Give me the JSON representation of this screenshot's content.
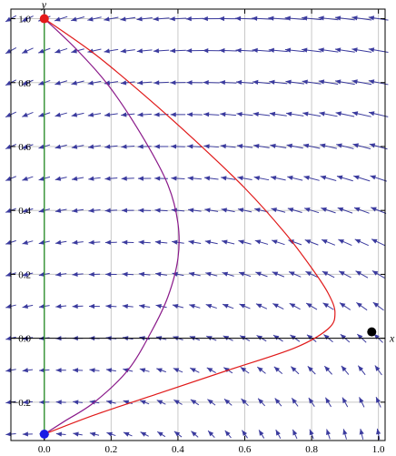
{
  "chart_data": {
    "type": "line",
    "title": "",
    "xlabel": "x",
    "ylabel": "y",
    "xlim": [
      -0.1,
      1.02
    ],
    "ylim": [
      -0.32,
      1.03
    ],
    "xticks": [
      0.0,
      0.2,
      0.4,
      0.6,
      0.8,
      1.0
    ],
    "xtick_labels": [
      "0.0",
      "0.2",
      "0.4",
      "0.6",
      "0.8",
      "1.0"
    ],
    "yticks": [
      -0.2,
      0.0,
      0.2,
      0.4,
      0.6,
      0.8,
      1.0
    ],
    "ytick_labels": [
      "−0.2",
      "0.0",
      "0.2",
      "0.4",
      "0.6",
      "0.8",
      "1.0"
    ],
    "grid": true,
    "vector_field": {
      "arrow_color": "#3b3b9e",
      "x_grid": [
        -0.1,
        -0.05,
        0.0,
        0.05,
        0.1,
        0.15,
        0.2,
        0.25,
        0.3,
        0.35,
        0.4,
        0.45,
        0.5,
        0.55,
        0.6,
        0.65,
        0.7,
        0.75,
        0.8,
        0.85,
        0.9,
        0.95,
        1.0
      ],
      "y_grid": [
        -0.3,
        -0.2,
        -0.1,
        0.0,
        0.1,
        0.2,
        0.3,
        0.4,
        0.5,
        0.6,
        0.7,
        0.8,
        0.9,
        1.0
      ]
    },
    "series": [
      {
        "color": "#2e9e2e",
        "points": [
          [
            0.0,
            1.0
          ],
          [
            0.0,
            -0.3
          ]
        ]
      },
      {
        "color": "#8a1a8a",
        "points": [
          [
            0.0,
            1.0
          ],
          [
            0.1,
            0.9
          ],
          [
            0.2,
            0.78
          ],
          [
            0.3,
            0.62
          ],
          [
            0.37,
            0.48
          ],
          [
            0.4,
            0.36
          ],
          [
            0.4,
            0.25
          ],
          [
            0.37,
            0.13
          ],
          [
            0.32,
            0.02
          ],
          [
            0.25,
            -0.1
          ],
          [
            0.15,
            -0.2
          ],
          [
            0.06,
            -0.26
          ],
          [
            0.0,
            -0.3
          ]
        ]
      },
      {
        "color": "#e01a1a",
        "points": [
          [
            0.0,
            1.0
          ],
          [
            0.15,
            0.89
          ],
          [
            0.3,
            0.76
          ],
          [
            0.45,
            0.62
          ],
          [
            0.6,
            0.47
          ],
          [
            0.72,
            0.33
          ],
          [
            0.8,
            0.22
          ],
          [
            0.85,
            0.14
          ],
          [
            0.87,
            0.08
          ],
          [
            0.85,
            0.03
          ],
          [
            0.75,
            -0.03
          ],
          [
            0.55,
            -0.1
          ],
          [
            0.35,
            -0.17
          ],
          [
            0.15,
            -0.24
          ],
          [
            0.0,
            -0.3
          ]
        ]
      }
    ],
    "points": [
      {
        "x": 0.0,
        "y": 1.0,
        "color": "#e51a1a"
      },
      {
        "x": 0.0,
        "y": -0.3,
        "color": "#1a1ae5"
      },
      {
        "x": 0.98,
        "y": 0.02,
        "color": "#000000"
      }
    ]
  }
}
